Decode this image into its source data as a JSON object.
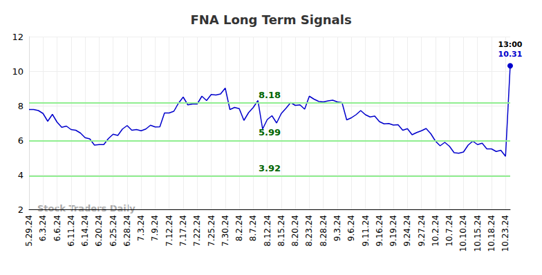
{
  "chart_data": {
    "type": "line",
    "title": "FNA Long Term Signals",
    "watermark": "Stock Traders Daily",
    "categories": [
      "5.29.24",
      null,
      null,
      "6.3.24",
      null,
      null,
      "6.6.24",
      null,
      null,
      "6.11.24",
      null,
      null,
      "6.14.24",
      null,
      null,
      "6.20.24",
      null,
      null,
      "6.25.24",
      null,
      null,
      "6.28.24",
      null,
      null,
      "7.3.24",
      null,
      null,
      "7.9.24",
      null,
      null,
      "7.12.24",
      null,
      null,
      "7.17.24",
      null,
      null,
      "7.22.24",
      null,
      null,
      "7.25.24",
      null,
      null,
      "7.30.24",
      null,
      null,
      "8.2.24",
      null,
      null,
      "8.7.24",
      null,
      null,
      "8.12.24",
      null,
      null,
      "8.15.24",
      null,
      null,
      "8.20.24",
      null,
      null,
      "8.23.24",
      null,
      null,
      "8.28.24",
      null,
      null,
      "9.3.24",
      null,
      null,
      "9.6.24",
      null,
      null,
      "9.11.24",
      null,
      null,
      "9.16.24",
      null,
      null,
      "9.19.24",
      null,
      null,
      "9.24.24",
      null,
      null,
      "9.27.24",
      null,
      null,
      "10.2.24",
      null,
      null,
      "10.7.24",
      null,
      null,
      "10.10.24",
      null,
      null,
      "10.15.24",
      null,
      null,
      "10.18.24",
      null,
      null,
      "10.23.24",
      null
    ],
    "values": [
      7.78,
      7.78,
      7.72,
      7.55,
      7.1,
      7.5,
      7.05,
      6.75,
      6.82,
      6.62,
      6.58,
      6.42,
      6.15,
      6.08,
      5.72,
      5.75,
      5.75,
      6.1,
      6.35,
      6.28,
      6.65,
      6.85,
      6.58,
      6.62,
      6.55,
      6.65,
      6.87,
      6.77,
      6.78,
      7.58,
      7.58,
      7.68,
      8.15,
      8.5,
      8.05,
      8.1,
      8.1,
      8.55,
      8.3,
      8.65,
      8.62,
      8.68,
      9.02,
      7.78,
      7.9,
      7.83,
      7.15,
      7.6,
      7.9,
      8.3,
      6.65,
      7.2,
      7.42,
      7.0,
      7.55,
      7.85,
      8.18,
      8.02,
      8.05,
      7.8,
      8.55,
      8.38,
      8.25,
      8.22,
      8.28,
      8.32,
      8.22,
      8.18,
      7.18,
      7.3,
      7.48,
      7.72,
      7.48,
      7.35,
      7.4,
      7.08,
      6.95,
      6.97,
      6.88,
      6.9,
      6.58,
      6.67,
      6.32,
      6.45,
      6.55,
      6.68,
      6.38,
      5.95,
      5.68,
      5.88,
      5.65,
      5.28,
      5.25,
      5.32,
      5.72,
      5.95,
      5.75,
      5.83,
      5.5,
      5.5,
      5.35,
      5.42,
      5.07,
      10.31
    ],
    "color": "#0000cc",
    "last_point_annotation": "13:00",
    "reference_lines": [
      {
        "value": 8.18,
        "label": "8.18",
        "color": "#90ee90"
      },
      {
        "value": 5.99,
        "label": "5.99",
        "color": "#90ee90"
      },
      {
        "value": 3.92,
        "label": "3.92",
        "color": "#90ee90"
      }
    ],
    "ylim": [
      2,
      12
    ],
    "yticks": [
      2,
      4,
      6,
      8,
      10,
      12
    ],
    "grid": true
  }
}
